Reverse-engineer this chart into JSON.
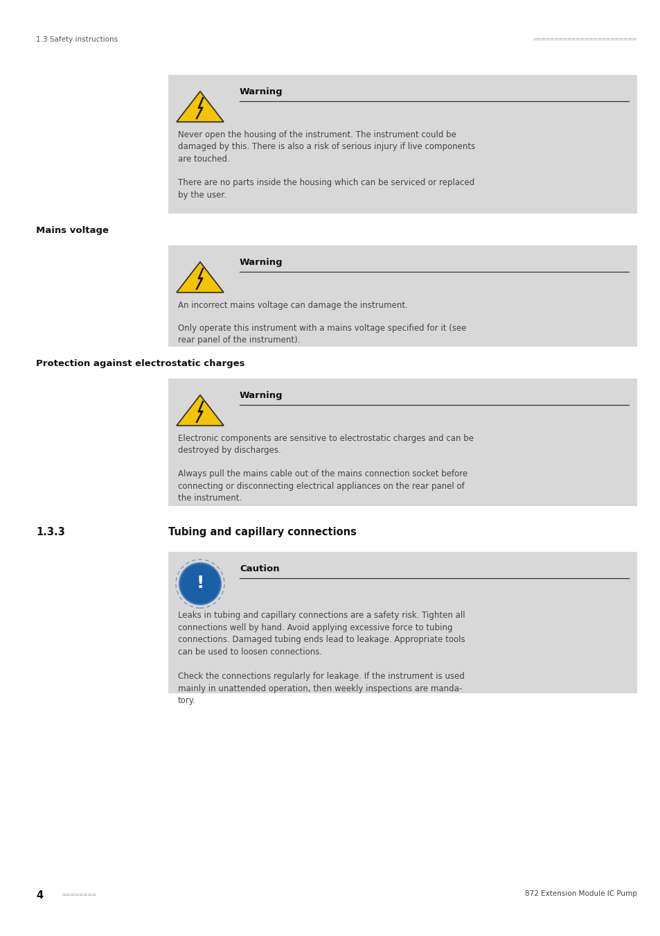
{
  "page_width": 9.54,
  "page_height": 13.5,
  "bg_color": "#ffffff",
  "header_left": "1.3 Safety instructions",
  "header_right_dots": "========================",
  "footer_left_num": "4",
  "footer_left_dots": "========",
  "footer_right": "872 Extension Module IC Pump",
  "section_133_label": "1.3.3",
  "section_133_title": "Tubing and capillary connections",
  "box_bg": "#d8d8d8",
  "warning1": {
    "title": "Warning",
    "para1": "Never open the housing of the instrument. The instrument could be\ndamaged by this. There is also a risk of serious injury if live components\nare touched.",
    "para2": "There are no parts inside the housing which can be serviced or replaced\nby the user."
  },
  "mains_heading": "Mains voltage",
  "warning2": {
    "title": "Warning",
    "para1": "An incorrect mains voltage can damage the instrument.",
    "para2": "Only operate this instrument with a mains voltage specified for it (see\nrear panel of the instrument)."
  },
  "protection_heading": "Protection against electrostatic charges",
  "warning3": {
    "title": "Warning",
    "para1": "Electronic components are sensitive to electrostatic charges and can be\ndestroyed by discharges.",
    "para2": "Always pull the mains cable out of the mains connection socket before\nconnecting or disconnecting electrical appliances on the rear panel of\nthe instrument."
  },
  "caution1": {
    "title": "Caution",
    "para1": "Leaks in tubing and capillary connections are a safety risk. Tighten all\nconnections well by hand. Avoid applying excessive force to tubing\nconnections. Damaged tubing ends lead to leakage. Appropriate tools\ncan be used to loosen connections.",
    "para2": "Check the connections regularly for leakage. If the instrument is used\nmainly in unattended operation, then weekly inspections are manda-\ntory."
  }
}
